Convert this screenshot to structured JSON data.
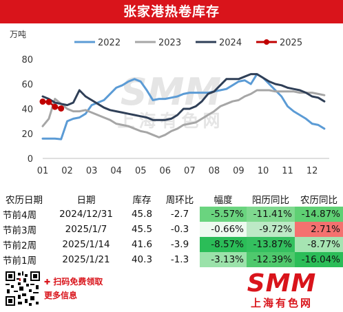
{
  "header": {
    "title": "张家港热卷库存"
  },
  "chart_data": {
    "type": "line",
    "ylabel": "万吨",
    "ylim": [
      0,
      80
    ],
    "yticks": [
      "0",
      "20",
      "40",
      "60",
      "80"
    ],
    "xlim": [
      1,
      12.7
    ],
    "xticks": [
      "01",
      "02",
      "03",
      "04",
      "05",
      "06",
      "07",
      "08",
      "09",
      "10",
      "11",
      "12"
    ],
    "watermark": {
      "main": "SMM",
      "sub": "上海有色网"
    },
    "series": [
      {
        "name": "2022",
        "color": "#5b9bd5",
        "x": [
          1,
          1.25,
          1.5,
          1.75,
          2,
          2.25,
          2.5,
          2.75,
          3,
          3.25,
          3.5,
          3.75,
          4,
          4.25,
          4.5,
          4.75,
          5,
          5.25,
          5.5,
          5.75,
          6,
          6.25,
          6.5,
          6.75,
          7,
          7.25,
          7.5,
          7.75,
          8,
          8.25,
          8.5,
          8.75,
          9,
          9.25,
          9.5,
          9.75,
          10,
          10.25,
          10.5,
          10.75,
          11,
          11.25,
          11.5,
          11.75,
          12,
          12.25,
          12.5
        ],
        "values": [
          16,
          16,
          16,
          15.5,
          30,
          32,
          33,
          36,
          43,
          45,
          47,
          52,
          57,
          59,
          62,
          64,
          62,
          55,
          47,
          48,
          48,
          49,
          50,
          52,
          53,
          53,
          53,
          53,
          54,
          55,
          56,
          59,
          62,
          63,
          60,
          68,
          65,
          60,
          55,
          50,
          42,
          38,
          35,
          32,
          28,
          27,
          24
        ]
      },
      {
        "name": "2023",
        "color": "#a6a6a6",
        "x": [
          1,
          1.25,
          1.5,
          1.75,
          2,
          2.25,
          2.5,
          2.75,
          3,
          3.25,
          3.5,
          3.75,
          4,
          4.25,
          4.5,
          4.75,
          5,
          5.25,
          5.5,
          5.75,
          6,
          6.25,
          6.5,
          6.75,
          7,
          7.25,
          7.5,
          7.75,
          8,
          8.25,
          8.5,
          8.75,
          9,
          9.25,
          9.5,
          9.75,
          10,
          10.25,
          10.5,
          10.75,
          11,
          11.25,
          11.5,
          11.75,
          12,
          12.25,
          12.5
        ],
        "values": [
          26,
          32,
          48,
          44,
          40,
          38,
          38,
          39,
          37,
          35,
          33,
          31,
          28,
          27,
          26,
          24,
          22,
          21,
          19,
          17,
          19,
          22,
          24,
          27,
          28,
          29,
          32,
          35,
          38,
          42,
          44,
          46,
          47,
          50,
          52,
          55,
          55,
          55,
          54,
          54,
          54,
          54,
          53,
          53,
          53,
          52,
          51
        ]
      },
      {
        "name": "2024",
        "color": "#2f3f57",
        "x": [
          1,
          1.25,
          1.5,
          1.75,
          2,
          2.25,
          2.5,
          2.75,
          3,
          3.25,
          3.5,
          3.75,
          4,
          4.25,
          4.5,
          4.75,
          5,
          5.25,
          5.5,
          5.75,
          6,
          6.25,
          6.5,
          6.75,
          7,
          7.25,
          7.5,
          7.75,
          8,
          8.25,
          8.5,
          8.75,
          9,
          9.25,
          9.5,
          9.75,
          10,
          10.25,
          10.5,
          10.75,
          11,
          11.25,
          11.5,
          11.75,
          12,
          12.25,
          12.5
        ],
        "values": [
          50,
          48,
          45,
          44,
          43,
          45,
          55,
          50,
          47,
          44,
          41,
          39,
          38,
          37,
          36,
          35,
          34,
          33,
          31,
          31,
          31,
          32,
          35,
          40,
          40,
          42,
          46,
          52,
          54,
          59,
          64,
          64,
          64,
          66,
          68,
          68,
          65,
          62,
          60,
          59,
          57,
          56,
          55,
          53,
          50,
          49,
          46
        ]
      },
      {
        "name": "2025",
        "color": "#c00000",
        "marker": true,
        "x": [
          1,
          1.25,
          1.5,
          1.75
        ],
        "values": [
          45.8,
          45.5,
          41.6,
          40.3
        ]
      }
    ]
  },
  "table": {
    "headers": [
      "农历日期",
      "日期",
      "库存",
      "周环比",
      "幅度",
      "阳历同比",
      "农历同比"
    ],
    "rows": [
      {
        "lunar": "节前4周",
        "date": "2024/12/31",
        "stock": "45.8",
        "wow": "-2.7",
        "pct": "-5.57%",
        "yoy_solar": "-11.41%",
        "yoy_lunar": "-14.87%"
      },
      {
        "lunar": "节前3周",
        "date": "2025/1/7",
        "stock": "45.5",
        "wow": "-0.3",
        "pct": "-0.66%",
        "yoy_solar": "-9.72%",
        "yoy_lunar": "2.71%"
      },
      {
        "lunar": "节前2周",
        "date": "2025/1/14",
        "stock": "41.6",
        "wow": "-3.9",
        "pct": "-8.57%",
        "yoy_solar": "-13.87%",
        "yoy_lunar": "-8.77%"
      },
      {
        "lunar": "节前1周",
        "date": "2025/1/21",
        "stock": "40.3",
        "wow": "-1.3",
        "pct": "-3.13%",
        "yoy_solar": "-12.39%",
        "yoy_lunar": "-16.04%"
      }
    ],
    "heat_colors": {
      "pct": [
        "#6ad47f",
        "#eefaf0",
        "#2bbd58",
        "#9be2aa"
      ],
      "yoy_solar": [
        "#7fd98f",
        "#bde9c6",
        "#34c05f",
        "#4fc96d"
      ],
      "yoy_lunar": [
        "#5fd074",
        "#f4716f",
        "#a6e4b2",
        "#2bbd58"
      ]
    }
  },
  "footer": {
    "line1": "扫码免费领取",
    "line2": "更多信息",
    "brand_main": "SMM",
    "brand_sub": "上海有色网"
  }
}
